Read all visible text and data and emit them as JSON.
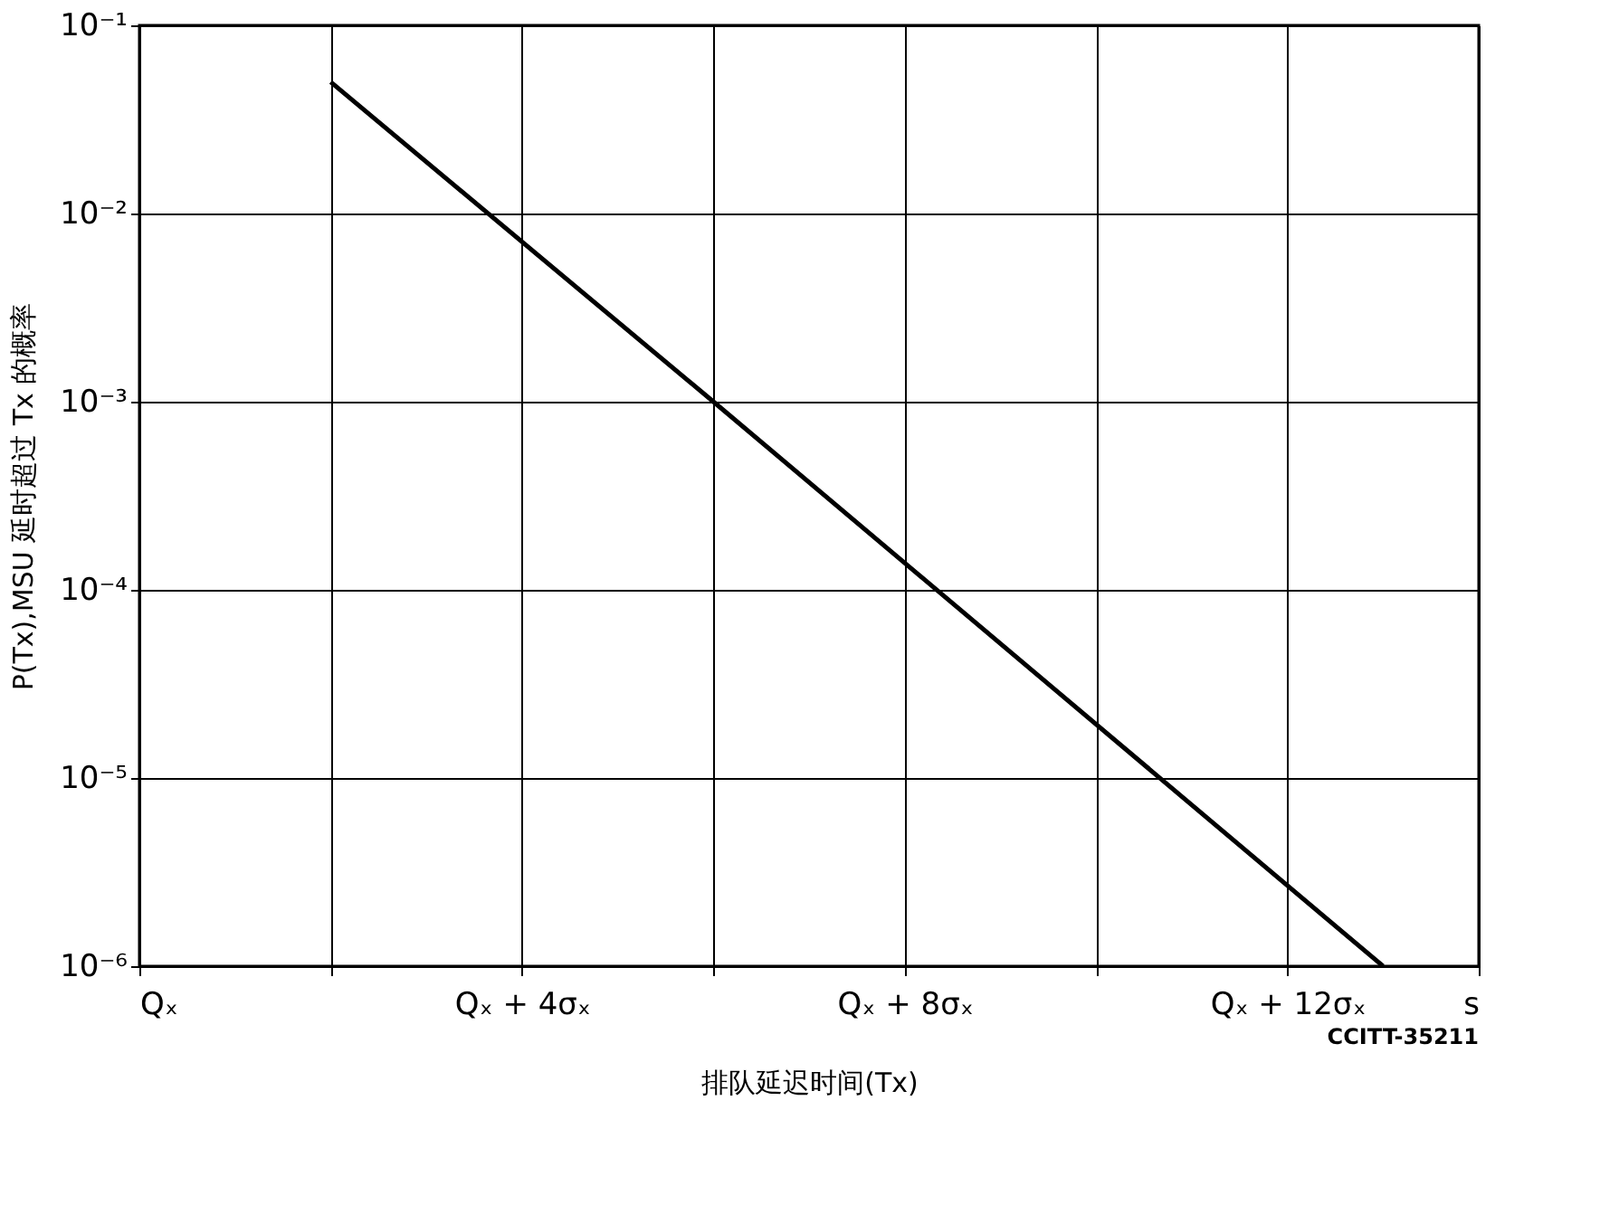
{
  "chart_data": {
    "type": "line",
    "xlabel": "排队延迟时间(Tx)",
    "ylabel": "P(Tx),MSU 延时超过 Tx 的概率",
    "x": [
      2,
      6,
      13
    ],
    "series": [
      {
        "color": "#000000",
        "values": [
          0.05,
          0.001,
          1e-06
        ]
      }
    ],
    "xlim": [
      0,
      14
    ],
    "xticks": [
      {
        "value": 0,
        "label": "Qₓ"
      },
      {
        "value": 2,
        "label": null
      },
      {
        "value": 4,
        "label": "Qₓ + 4σₓ"
      },
      {
        "value": 6,
        "label": null
      },
      {
        "value": 8,
        "label": "Qₓ + 8σₓ"
      },
      {
        "value": 10,
        "label": null
      },
      {
        "value": 12,
        "label": "Qₓ + 12σₓ"
      },
      {
        "value": 14,
        "label": "s"
      }
    ],
    "ylim": [
      1e-06,
      0.1
    ],
    "yticks": [
      {
        "value": 1e-06,
        "label": "10⁻⁶"
      },
      {
        "value": 1e-05,
        "label": "10⁻⁵"
      },
      {
        "value": 0.0001,
        "label": "10⁻⁴"
      },
      {
        "value": 0.001,
        "label": "10⁻³"
      },
      {
        "value": 0.01,
        "label": "10⁻²"
      },
      {
        "value": 0.1,
        "label": "10⁻¹"
      }
    ],
    "log": "y",
    "grid": true,
    "legend": false,
    "marker": "none",
    "line_style": "solid",
    "annotations": [
      "CCITT-35211"
    ]
  }
}
